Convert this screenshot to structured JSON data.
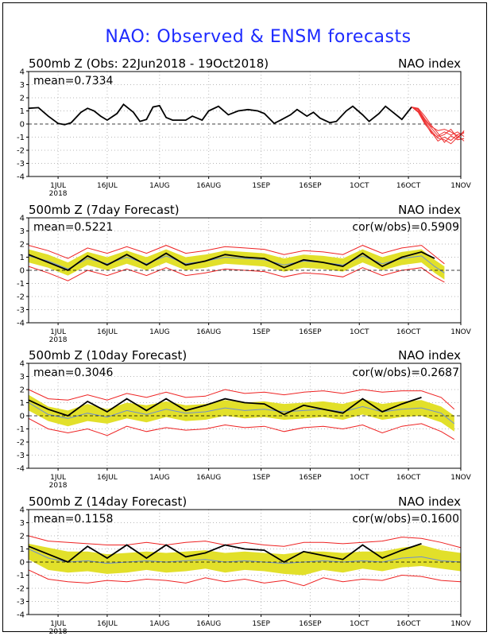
{
  "title": "NAO: Observed & ENSM forecasts",
  "colors": {
    "title": "#1e2bff",
    "observed": "#000000",
    "spread": "#e2e02a",
    "mean": "#6f8fd0",
    "range": "#ee2222",
    "forecast": "#ee3333"
  },
  "chart_data": [
    {
      "type": "line",
      "title": "500mb Z (Obs: 22Jun2018 - 19Oct2018)",
      "right_label": "NAO index",
      "mean_label": "mean=0.7334",
      "cor_label": "",
      "ylim": [
        -4,
        4
      ],
      "yticks": [
        "4",
        "3",
        "2",
        "1",
        "0",
        "-1",
        "-2",
        "-3",
        "-4"
      ],
      "xticks": [
        "1JUL",
        "16JUL",
        "1AUG",
        "16AUG",
        "1SEP",
        "16SEP",
        "1OCT",
        "16OCT",
        "1NOV"
      ],
      "xtick_days": [
        9,
        24,
        40,
        55,
        71,
        86,
        101,
        116,
        132
      ],
      "year_label": "2018",
      "xlim": [
        0,
        132
      ],
      "grid": true,
      "observed": {
        "x": [
          0,
          3,
          6,
          9,
          11,
          13,
          16,
          18,
          20,
          22,
          24,
          27,
          29,
          32,
          34,
          36,
          38,
          40,
          42,
          44,
          46,
          48,
          50,
          53,
          55,
          58,
          61,
          64,
          67,
          70,
          72,
          75,
          77,
          80,
          82,
          85,
          87,
          89,
          92,
          94,
          97,
          99,
          102,
          104,
          107,
          109,
          111,
          114,
          117
        ],
        "y": [
          1.2,
          1.25,
          0.6,
          0.05,
          -0.05,
          0.1,
          0.9,
          1.2,
          1.0,
          0.6,
          0.3,
          0.8,
          1.5,
          0.9,
          0.2,
          0.35,
          1.3,
          1.4,
          0.5,
          0.3,
          0.3,
          0.3,
          0.6,
          0.3,
          1.0,
          1.35,
          0.7,
          1.0,
          1.1,
          1.0,
          0.8,
          0.05,
          0.3,
          0.7,
          1.1,
          0.6,
          0.9,
          0.45,
          0.1,
          0.2,
          1.0,
          1.35,
          0.7,
          0.2,
          0.8,
          1.35,
          0.95,
          0.35,
          1.3
        ]
      },
      "members": [
        {
          "x": [
            117,
            119,
            121,
            123,
            125,
            127,
            129,
            131,
            133
          ],
          "y": [
            1.3,
            1.1,
            0.3,
            -0.3,
            -0.9,
            -0.6,
            -0.85,
            -0.6,
            -0.95
          ]
        },
        {
          "x": [
            117,
            119,
            121,
            123,
            125,
            127,
            129,
            131,
            133
          ],
          "y": [
            1.3,
            0.9,
            0.0,
            -0.6,
            -1.3,
            -1.0,
            -1.25,
            -0.8,
            -0.7
          ]
        },
        {
          "x": [
            117,
            119,
            121,
            123,
            125,
            127,
            129,
            131,
            133
          ],
          "y": [
            1.3,
            1.2,
            0.6,
            -0.1,
            -0.7,
            -1.4,
            -0.9,
            -1.2,
            -1.1
          ]
        },
        {
          "x": [
            117,
            119,
            121,
            123,
            125,
            127,
            129,
            131,
            133
          ],
          "y": [
            1.3,
            1.0,
            0.2,
            -0.5,
            -1.1,
            -1.2,
            -1.5,
            -1.0,
            -0.6
          ]
        },
        {
          "x": [
            117,
            119,
            121,
            123,
            125,
            127,
            129,
            131,
            133
          ],
          "y": [
            1.3,
            1.15,
            0.4,
            -0.2,
            -0.5,
            -0.4,
            -0.6,
            -0.9,
            -1.3
          ]
        },
        {
          "x": [
            117,
            119,
            121,
            123,
            125,
            127,
            129,
            131,
            133
          ],
          "y": [
            1.3,
            0.95,
            0.1,
            -0.7,
            -1.0,
            -0.8,
            -0.4,
            -1.1,
            -0.5
          ]
        }
      ]
    },
    {
      "type": "area",
      "title": "500mb Z (7day Forecast)",
      "right_label": "NAO index",
      "mean_label": "mean=0.5221",
      "cor_label": "cor(w/obs)=0.5909",
      "ylim": [
        -4,
        4
      ],
      "yticks": [
        "4",
        "3",
        "2",
        "1",
        "0",
        "-1",
        "-2",
        "-3",
        "-4"
      ],
      "xticks": [
        "1JUL",
        "16JUL",
        "1AUG",
        "16AUG",
        "1SEP",
        "16SEP",
        "1OCT",
        "16OCT",
        "1NOV"
      ],
      "xtick_days": [
        9,
        24,
        40,
        55,
        71,
        86,
        101,
        116,
        132
      ],
      "year_label": "2018",
      "xlim": [
        0,
        132
      ],
      "grid": true,
      "x": [
        0,
        6,
        12,
        18,
        24,
        30,
        36,
        42,
        48,
        54,
        60,
        66,
        72,
        78,
        84,
        90,
        96,
        102,
        108,
        114,
        120,
        124
      ],
      "observed_y": [
        1.2,
        0.6,
        0.0,
        1.1,
        0.4,
        1.2,
        0.4,
        1.3,
        0.4,
        0.7,
        1.2,
        1.0,
        0.9,
        0.2,
        0.8,
        0.6,
        0.3,
        1.3,
        0.3,
        1.0,
        1.4,
        0.9
      ],
      "observed_x": [
        0,
        6,
        12,
        18,
        24,
        30,
        36,
        42,
        48,
        54,
        60,
        66,
        72,
        78,
        84,
        90,
        96,
        102,
        108,
        114,
        120,
        124
      ],
      "mean_y": [
        1.1,
        0.7,
        0.1,
        0.9,
        0.5,
        1.0,
        0.5,
        1.1,
        0.5,
        0.7,
        1.0,
        0.9,
        0.8,
        0.4,
        0.7,
        0.6,
        0.4,
        1.1,
        0.5,
        0.9,
        1.1,
        0.3,
        -0.2
      ],
      "spread_lo": [
        0.6,
        0.2,
        -0.4,
        0.4,
        0.0,
        0.5,
        0.0,
        0.6,
        0.0,
        0.2,
        0.5,
        0.4,
        0.3,
        -0.1,
        0.2,
        0.1,
        -0.1,
        0.6,
        0.0,
        0.4,
        0.6,
        -0.2,
        -0.7
      ],
      "spread_hi": [
        1.6,
        1.2,
        0.6,
        1.4,
        1.0,
        1.5,
        1.0,
        1.6,
        1.0,
        1.2,
        1.5,
        1.4,
        1.3,
        0.9,
        1.2,
        1.1,
        0.9,
        1.6,
        1.0,
        1.4,
        1.6,
        0.8,
        0.3
      ],
      "range_lo": [
        0.3,
        -0.2,
        -0.8,
        0.0,
        -0.4,
        0.1,
        -0.4,
        0.2,
        -0.4,
        -0.2,
        0.1,
        0.0,
        -0.1,
        -0.5,
        -0.2,
        -0.3,
        -0.5,
        0.2,
        -0.4,
        0.0,
        0.2,
        -0.5,
        -0.9
      ],
      "range_hi": [
        1.9,
        1.5,
        0.9,
        1.7,
        1.3,
        1.8,
        1.3,
        1.9,
        1.3,
        1.5,
        1.8,
        1.7,
        1.6,
        1.2,
        1.5,
        1.4,
        1.2,
        1.9,
        1.3,
        1.7,
        1.9,
        1.1,
        0.5
      ],
      "band_x": [
        0,
        6,
        12,
        18,
        24,
        30,
        36,
        42,
        48,
        54,
        60,
        66,
        72,
        78,
        84,
        90,
        96,
        102,
        108,
        114,
        120,
        124,
        127
      ]
    },
    {
      "type": "area",
      "title": "500mb Z (10day Forecast)",
      "right_label": "NAO index",
      "mean_label": "mean=0.3046",
      "cor_label": "cor(w/obs)=0.2687",
      "ylim": [
        -4,
        4
      ],
      "yticks": [
        "4",
        "3",
        "2",
        "1",
        "0",
        "-1",
        "-2",
        "-3",
        "-4"
      ],
      "xticks": [
        "1JUL",
        "16JUL",
        "1AUG",
        "16AUG",
        "1SEP",
        "16SEP",
        "1OCT",
        "16OCT",
        "1NOV"
      ],
      "xtick_days": [
        9,
        24,
        40,
        55,
        71,
        86,
        101,
        116,
        132
      ],
      "year_label": "2018",
      "xlim": [
        0,
        132
      ],
      "grid": true,
      "observed_x": [
        0,
        6,
        12,
        18,
        24,
        30,
        36,
        42,
        48,
        54,
        60,
        66,
        72,
        78,
        84,
        90,
        96,
        102,
        108,
        114,
        120
      ],
      "observed_y": [
        1.2,
        0.5,
        0.0,
        1.1,
        0.3,
        1.3,
        0.4,
        1.3,
        0.4,
        0.8,
        1.3,
        1.0,
        0.9,
        0.1,
        0.8,
        0.5,
        0.2,
        1.3,
        0.3,
        0.9,
        1.4
      ],
      "band_x": [
        0,
        6,
        12,
        18,
        24,
        30,
        36,
        42,
        48,
        54,
        60,
        66,
        72,
        78,
        84,
        90,
        96,
        102,
        108,
        114,
        120,
        126,
        130
      ],
      "mean_y": [
        1.0,
        0.1,
        -0.2,
        0.2,
        -0.1,
        0.4,
        0.1,
        0.5,
        0.2,
        0.3,
        0.6,
        0.4,
        0.5,
        0.3,
        0.4,
        0.5,
        0.3,
        0.7,
        0.3,
        0.5,
        0.6,
        0.2,
        -0.6
      ],
      "spread_lo": [
        0.4,
        -0.4,
        -0.8,
        -0.4,
        -0.6,
        -0.2,
        -0.5,
        -0.1,
        -0.4,
        -0.3,
        0.0,
        -0.2,
        -0.1,
        -0.3,
        -0.2,
        -0.1,
        -0.3,
        0.1,
        -0.3,
        -0.1,
        0.0,
        -0.5,
        -1.2
      ],
      "spread_hi": [
        1.6,
        0.7,
        0.4,
        0.9,
        0.5,
        1.0,
        0.8,
        1.1,
        0.8,
        0.9,
        1.2,
        1.0,
        1.1,
        0.9,
        1.0,
        1.1,
        0.9,
        1.3,
        0.9,
        1.1,
        1.2,
        0.7,
        0.0
      ],
      "range_lo": [
        -0.2,
        -1.0,
        -1.3,
        -1.0,
        -1.5,
        -0.8,
        -1.2,
        -0.9,
        -1.1,
        -1.0,
        -0.7,
        -0.9,
        -0.8,
        -1.2,
        -0.9,
        -0.8,
        -1.0,
        -0.7,
        -1.3,
        -0.8,
        -0.6,
        -1.2,
        -1.8
      ],
      "range_hi": [
        2.0,
        1.3,
        1.2,
        1.6,
        1.2,
        1.7,
        1.4,
        1.8,
        1.4,
        1.5,
        2.0,
        1.7,
        1.8,
        1.6,
        1.8,
        1.9,
        1.7,
        2.0,
        1.8,
        1.9,
        1.9,
        1.4,
        0.5
      ]
    },
    {
      "type": "area",
      "title": "500mb Z (14day Forecast)",
      "right_label": "NAO index",
      "mean_label": "mean=0.1158",
      "cor_label": "cor(w/obs)=0.1600",
      "ylim": [
        -4,
        4
      ],
      "yticks": [
        "4",
        "3",
        "2",
        "1",
        "0",
        "-1",
        "-2",
        "-3",
        "-4"
      ],
      "xticks": [
        "1JUL",
        "16JUL",
        "1AUG",
        "16AUG",
        "1SEP",
        "16SEP",
        "1OCT",
        "16OCT",
        "1NOV"
      ],
      "xtick_days": [
        9,
        24,
        40,
        55,
        71,
        86,
        101,
        116,
        132
      ],
      "year_label": "2018",
      "xlim": [
        0,
        132
      ],
      "grid": true,
      "observed_x": [
        0,
        6,
        12,
        18,
        24,
        30,
        36,
        42,
        48,
        54,
        60,
        66,
        72,
        78,
        84,
        90,
        96,
        102,
        108,
        114,
        120
      ],
      "observed_y": [
        1.2,
        0.6,
        0.0,
        1.2,
        0.3,
        1.3,
        0.3,
        1.3,
        0.4,
        0.7,
        1.3,
        1.0,
        0.9,
        0.0,
        0.8,
        0.5,
        0.2,
        1.3,
        0.3,
        0.9,
        1.4
      ],
      "band_x": [
        0,
        6,
        12,
        18,
        24,
        30,
        36,
        42,
        48,
        54,
        60,
        66,
        72,
        78,
        84,
        90,
        96,
        102,
        108,
        114,
        120,
        126,
        132
      ],
      "mean_y": [
        1.0,
        0.3,
        0.0,
        0.1,
        -0.1,
        0.0,
        0.1,
        0.0,
        0.1,
        0.2,
        0.0,
        0.1,
        0.0,
        -0.1,
        0.0,
        0.1,
        0.0,
        0.1,
        0.0,
        0.3,
        0.4,
        0.1,
        0.0
      ],
      "spread_lo": [
        0.2,
        -0.6,
        -0.8,
        -0.7,
        -0.9,
        -0.8,
        -0.6,
        -0.8,
        -0.7,
        -0.5,
        -0.8,
        -0.6,
        -0.7,
        -0.9,
        -1.0,
        -0.6,
        -0.8,
        -0.5,
        -0.7,
        -0.4,
        -0.3,
        -0.5,
        -0.7
      ],
      "spread_hi": [
        1.4,
        1.1,
        0.8,
        0.8,
        0.6,
        0.7,
        0.8,
        0.7,
        0.8,
        0.9,
        0.7,
        0.8,
        0.7,
        0.6,
        0.8,
        0.8,
        0.7,
        0.8,
        0.8,
        1.1,
        1.3,
        0.9,
        0.7
      ],
      "range_lo": [
        -0.6,
        -1.3,
        -1.5,
        -1.6,
        -1.4,
        -1.5,
        -1.3,
        -1.4,
        -1.6,
        -1.2,
        -1.5,
        -1.3,
        -1.6,
        -1.4,
        -1.8,
        -1.2,
        -1.5,
        -1.3,
        -1.4,
        -1.0,
        -1.1,
        -1.4,
        -1.5
      ],
      "range_hi": [
        2.0,
        1.6,
        1.5,
        1.4,
        1.3,
        1.3,
        1.5,
        1.3,
        1.5,
        1.6,
        1.3,
        1.5,
        1.3,
        1.2,
        1.5,
        1.5,
        1.4,
        1.5,
        1.6,
        1.9,
        1.8,
        1.5,
        1.1
      ]
    }
  ]
}
